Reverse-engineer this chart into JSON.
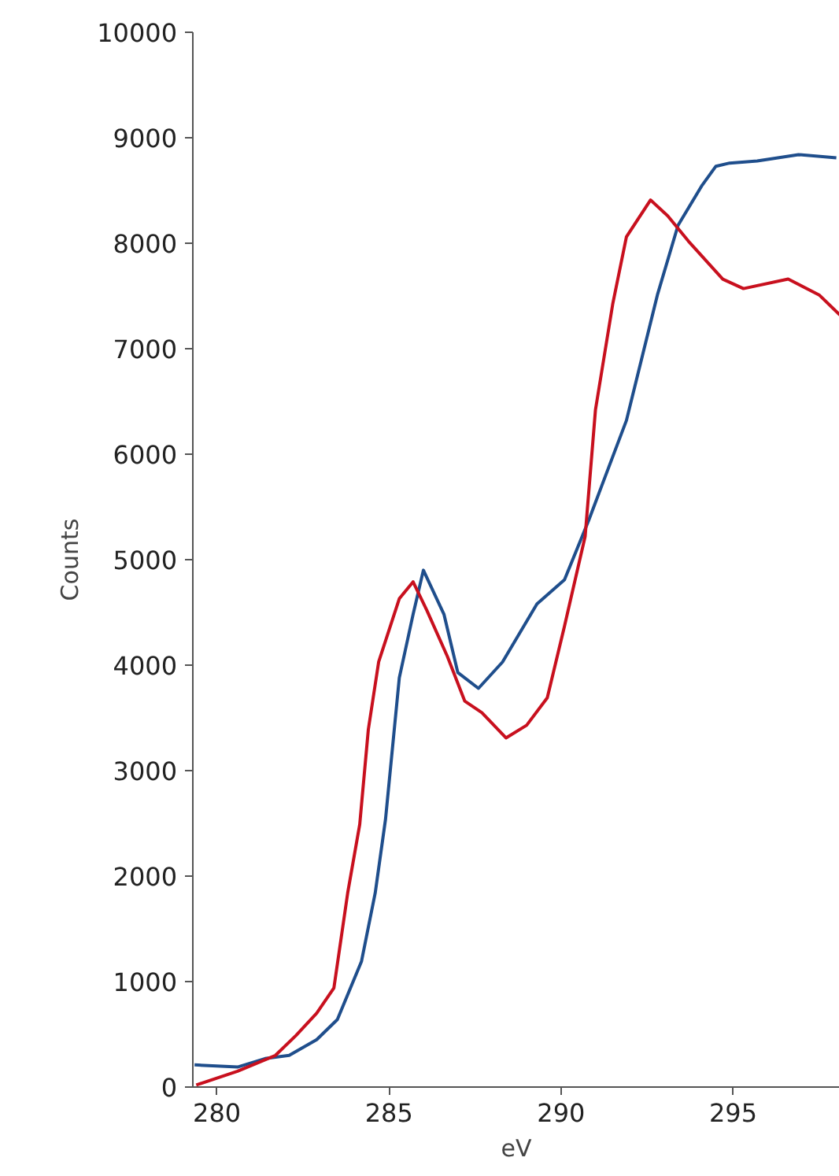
{
  "chart_data": {
    "type": "line",
    "xlabel": "eV",
    "ylabel": "Counts",
    "xlim": [
      279.3,
      298.1
    ],
    "ylim": [
      0,
      10000
    ],
    "xticks": [
      280,
      285,
      290,
      295
    ],
    "yticks": [
      0,
      1000,
      2000,
      3000,
      4000,
      5000,
      6000,
      7000,
      8000,
      9000,
      10000
    ],
    "grid": false,
    "marker": "none",
    "line_style": "solid",
    "series": [
      {
        "color": "#1f4e8c",
        "x": [
          279.35,
          280.6,
          281.4,
          282.1,
          282.9,
          283.5,
          284.2,
          284.6,
          284.9,
          285.3,
          285.7,
          286.0,
          286.6,
          287.0,
          287.6,
          288.3,
          289.3,
          290.1,
          290.8,
          291.9,
          292.8,
          293.4,
          294.1,
          294.5,
          294.9,
          295.7,
          296.9,
          298.0
        ],
        "values": [
          210,
          190,
          270,
          300,
          450,
          640,
          1190,
          1840,
          2540,
          3880,
          4480,
          4900,
          4480,
          3930,
          3780,
          4030,
          4580,
          4810,
          5370,
          6320,
          7510,
          8170,
          8550,
          8730,
          8760,
          8780,
          8840,
          8810
        ]
      },
      {
        "color": "#c8101e",
        "x": [
          279.4,
          280.6,
          281.7,
          282.3,
          282.9,
          283.4,
          283.8,
          284.15,
          284.4,
          284.7,
          285.3,
          285.7,
          286.1,
          286.7,
          287.2,
          287.7,
          288.4,
          289.0,
          289.6,
          290.1,
          290.7,
          291.0,
          291.5,
          291.9,
          292.6,
          293.1,
          293.7,
          294.7,
          295.3,
          296.6,
          297.5,
          298.1
        ],
        "values": [
          20,
          150,
          300,
          490,
          700,
          940,
          1840,
          2490,
          3390,
          4030,
          4630,
          4790,
          4520,
          4080,
          3660,
          3550,
          3310,
          3430,
          3690,
          4370,
          5220,
          6420,
          7420,
          8060,
          8410,
          8260,
          8020,
          7660,
          7570,
          7660,
          7510,
          7320
        ]
      }
    ]
  }
}
